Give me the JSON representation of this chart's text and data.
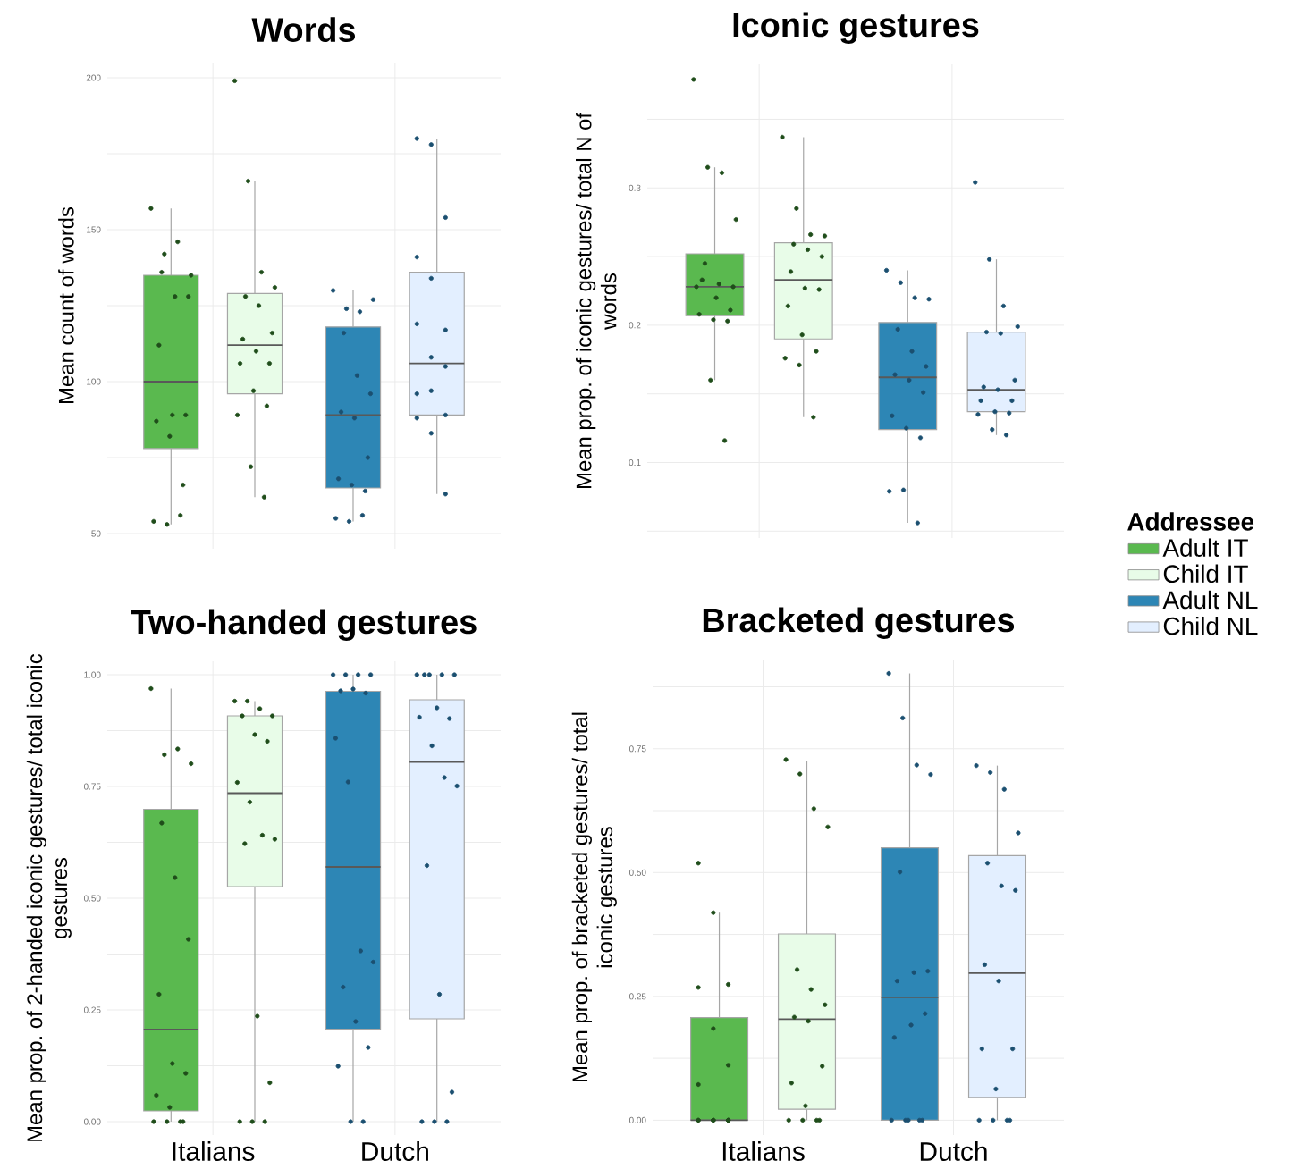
{
  "chart_data": [
    {
      "type": "box",
      "title": "Words",
      "ylabel": "Mean count of words",
      "categories": [
        "Italians",
        "Dutch"
      ],
      "ylim": [
        45,
        205
      ],
      "yticks": [
        50,
        {
          "value": 75,
          "label": null
        },
        100,
        {
          "value": 125,
          "label": null
        },
        150,
        {
          "value": 175,
          "label": null
        },
        200
      ],
      "grid": true,
      "tick_labels": "y",
      "series": [
        {
          "color": "#5ab94f",
          "boxes": [
            {
              "low": 53,
              "q1": 78,
              "median": 100,
              "q3": 135,
              "high": 157
            },
            null
          ]
        },
        {
          "color": "#e8fce8",
          "boxes": [
            {
              "low": 62,
              "q1": 96,
              "median": 112,
              "q3": 129,
              "high": 166
            },
            null
          ]
        },
        {
          "color": "#2d86b5",
          "boxes": [
            null,
            {
              "low": 54,
              "q1": 65,
              "median": 89,
              "q3": 118,
              "high": 130
            }
          ]
        },
        {
          "color": "#e3efff",
          "boxes": [
            null,
            {
              "low": 63,
              "q1": 89,
              "median": 106,
              "q3": 136,
              "high": 180
            }
          ]
        },
        {
          "type": "scatter",
          "marker": "circle",
          "color": "#1f4d1a",
          "x": [
            "Italians",
            "Italians",
            "Italians",
            "Italians",
            "Italians",
            "Italians",
            "Italians",
            "Italians",
            "Italians",
            "Italians",
            "Italians",
            "Italians",
            "Italians",
            "Italians",
            "Italians",
            "Italians"
          ],
          "values": [
            157,
            142,
            146,
            135,
            136,
            128,
            128,
            112,
            89,
            89,
            87,
            82,
            66,
            54,
            53,
            56
          ]
        },
        {
          "type": "scatter",
          "marker": "circle",
          "color": "#1f4d1a",
          "x": [
            "Italians",
            "Italians",
            "Italians",
            "Italians",
            "Italians",
            "Italians",
            "Italians",
            "Italians",
            "Italians",
            "Italians",
            "Italians",
            "Italians",
            "Italians",
            "Italians",
            "Italians",
            "Italians"
          ],
          "values": [
            199,
            166,
            136,
            131,
            128,
            125,
            116,
            114,
            110,
            106,
            106,
            97,
            92,
            89,
            72,
            62
          ]
        },
        {
          "type": "scatter",
          "marker": "circle",
          "color": "#1b4f70",
          "x": [
            "Dutch",
            "Dutch",
            "Dutch",
            "Dutch",
            "Dutch",
            "Dutch",
            "Dutch",
            "Dutch",
            "Dutch",
            "Dutch",
            "Dutch",
            "Dutch",
            "Dutch",
            "Dutch",
            "Dutch",
            "Dutch"
          ],
          "values": [
            130,
            124,
            123,
            127,
            116,
            102,
            96,
            90,
            88,
            75,
            68,
            66,
            64,
            55,
            54,
            56
          ]
        },
        {
          "type": "scatter",
          "marker": "circle",
          "color": "#1b4f70",
          "x": [
            "Dutch",
            "Dutch",
            "Dutch",
            "Dutch",
            "Dutch",
            "Dutch",
            "Dutch",
            "Dutch",
            "Dutch",
            "Dutch",
            "Dutch",
            "Dutch",
            "Dutch",
            "Dutch",
            "Dutch"
          ],
          "values": [
            180,
            178,
            154,
            141,
            134,
            117,
            119,
            108,
            105,
            96,
            97,
            89,
            88,
            83,
            63
          ]
        }
      ]
    },
    {
      "type": "box",
      "title": "Iconic gestures",
      "ylabel": "Mean prop. of iconic gestures/ total N of words",
      "categories": [
        "Italians",
        "Dutch"
      ],
      "ylim": [
        0.045,
        0.39
      ],
      "yticks": [
        {
          "value": 0.05,
          "label": null
        },
        0.1,
        {
          "value": 0.15,
          "label": null
        },
        0.2,
        {
          "value": 0.25,
          "label": null
        },
        0.3,
        {
          "value": 0.35,
          "label": null
        }
      ],
      "grid": true,
      "tick_labels": "y",
      "legend": "right",
      "legend_title": "Addressee",
      "series": [
        {
          "name": "Adult IT",
          "color": "#5ab94f",
          "boxes": [
            {
              "low": 0.16,
              "q1": 0.207,
              "median": 0.228,
              "q3": 0.252,
              "high": 0.315
            },
            null
          ]
        },
        {
          "name": "Child IT",
          "color": "#e8fce8",
          "boxes": [
            {
              "low": 0.133,
              "q1": 0.19,
              "median": 0.233,
              "q3": 0.26,
              "high": 0.337
            },
            null
          ]
        },
        {
          "name": "Adult NL",
          "color": "#2d86b5",
          "boxes": [
            null,
            {
              "low": 0.056,
              "q1": 0.124,
              "median": 0.162,
              "q3": 0.202,
              "high": 0.24
            }
          ]
        },
        {
          "name": "Child NL",
          "color": "#e3efff",
          "boxes": [
            null,
            {
              "low": 0.12,
              "q1": 0.137,
              "median": 0.153,
              "q3": 0.195,
              "high": 0.248
            }
          ]
        },
        {
          "type": "scatter",
          "marker": "circle",
          "color": "#1f4d1a",
          "x": [
            "Italians",
            "Italians",
            "Italians",
            "Italians",
            "Italians",
            "Italians",
            "Italians",
            "Italians",
            "Italians",
            "Italians",
            "Italians",
            "Italians",
            "Italians",
            "Italians",
            "Italians",
            "Italians"
          ],
          "values": [
            0.379,
            0.315,
            0.311,
            0.277,
            0.245,
            0.23,
            0.228,
            0.233,
            0.22,
            0.211,
            0.208,
            0.204,
            0.203,
            0.228,
            0.16,
            0.116
          ]
        },
        {
          "type": "scatter",
          "marker": "circle",
          "color": "#1f4d1a",
          "x": [
            "Italians",
            "Italians",
            "Italians",
            "Italians",
            "Italians",
            "Italians",
            "Italians",
            "Italians",
            "Italians",
            "Italians",
            "Italians",
            "Italians",
            "Italians",
            "Italians",
            "Italians",
            "Italians"
          ],
          "values": [
            0.337,
            0.285,
            0.266,
            0.265,
            0.259,
            0.255,
            0.25,
            0.239,
            0.227,
            0.226,
            0.214,
            0.193,
            0.181,
            0.176,
            0.171,
            0.133
          ]
        },
        {
          "type": "scatter",
          "marker": "circle",
          "color": "#1b4f70",
          "x": [
            "Dutch",
            "Dutch",
            "Dutch",
            "Dutch",
            "Dutch",
            "Dutch",
            "Dutch",
            "Dutch",
            "Dutch",
            "Dutch",
            "Dutch",
            "Dutch",
            "Dutch",
            "Dutch",
            "Dutch",
            "Dutch"
          ],
          "values": [
            0.24,
            0.231,
            0.22,
            0.219,
            0.197,
            0.181,
            0.17,
            0.164,
            0.16,
            0.151,
            0.134,
            0.125,
            0.118,
            0.079,
            0.08,
            0.056
          ]
        },
        {
          "type": "scatter",
          "marker": "circle",
          "color": "#1b4f70",
          "x": [
            "Dutch",
            "Dutch",
            "Dutch",
            "Dutch",
            "Dutch",
            "Dutch",
            "Dutch",
            "Dutch",
            "Dutch",
            "Dutch",
            "Dutch",
            "Dutch",
            "Dutch",
            "Dutch",
            "Dutch",
            "Dutch"
          ],
          "values": [
            0.304,
            0.248,
            0.214,
            0.199,
            0.195,
            0.194,
            0.16,
            0.155,
            0.153,
            0.145,
            0.145,
            0.137,
            0.136,
            0.135,
            0.124,
            0.12
          ]
        }
      ]
    },
    {
      "type": "box",
      "title": "Two-handed gestures",
      "ylabel": "Mean prop. of 2-handed iconic gestures/ total iconic gestures",
      "categories": [
        "Italians",
        "Dutch"
      ],
      "ylim": [
        -0.03,
        1.03
      ],
      "yticks": [
        {
          "value": 0,
          "label": "0.00"
        },
        {
          "value": 0.125,
          "label": null
        },
        {
          "value": 0.25,
          "label": "0.25"
        },
        {
          "value": 0.375,
          "label": null
        },
        {
          "value": 0.5,
          "label": "0.50"
        },
        {
          "value": 0.625,
          "label": null
        },
        {
          "value": 0.75,
          "label": "0.75"
        },
        {
          "value": 0.875,
          "label": null
        },
        {
          "value": 1,
          "label": "1.00"
        }
      ],
      "grid": true,
      "series": [
        {
          "color": "#5ab94f",
          "boxes": [
            {
              "low": 0,
              "q1": 0.024,
              "median": 0.206,
              "q3": 0.699,
              "high": 0.969
            },
            null
          ]
        },
        {
          "color": "#e8fce8",
          "boxes": [
            {
              "low": 0,
              "q1": 0.526,
              "median": 0.735,
              "q3": 0.908,
              "high": 0.941
            },
            null
          ]
        },
        {
          "color": "#2d86b5",
          "boxes": [
            null,
            {
              "low": 0,
              "q1": 0.207,
              "median": 0.57,
              "q3": 0.963,
              "high": 1
            }
          ]
        },
        {
          "color": "#e3efff",
          "boxes": [
            null,
            {
              "low": 0,
              "q1": 0.23,
              "median": 0.805,
              "q3": 0.944,
              "high": 1
            }
          ]
        },
        {
          "type": "scatter",
          "marker": "circle",
          "color": "#1f4d1a",
          "x": [
            "Italians",
            "Italians",
            "Italians",
            "Italians",
            "Italians",
            "Italians",
            "Italians",
            "Italians",
            "Italians",
            "Italians",
            "Italians",
            "Italians",
            "Italians",
            "Italians",
            "Italians",
            "Italians"
          ],
          "values": [
            0.969,
            0.821,
            0.834,
            0.801,
            0.668,
            0.546,
            0.408,
            0.285,
            0.13,
            0.108,
            0.059,
            0.032,
            0,
            0,
            0,
            0
          ]
        },
        {
          "type": "scatter",
          "marker": "circle",
          "color": "#1f4d1a",
          "x": [
            "Italians",
            "Italians",
            "Italians",
            "Italians",
            "Italians",
            "Italians",
            "Italians",
            "Italians",
            "Italians",
            "Italians",
            "Italians",
            "Italians",
            "Italians",
            "Italians",
            "Italians",
            "Italians",
            "Italians"
          ],
          "values": [
            0.941,
            0.941,
            0.924,
            0.908,
            0.908,
            0.866,
            0.851,
            0.759,
            0.715,
            0.641,
            0.632,
            0.622,
            0.236,
            0.087,
            0,
            0,
            0
          ]
        },
        {
          "type": "scatter",
          "marker": "circle",
          "color": "#1b4f70",
          "x": [
            "Dutch",
            "Dutch",
            "Dutch",
            "Dutch",
            "Dutch",
            "Dutch",
            "Dutch",
            "Dutch",
            "Dutch",
            "Dutch",
            "Dutch",
            "Dutch",
            "Dutch",
            "Dutch",
            "Dutch",
            "Dutch",
            "Dutch"
          ],
          "values": [
            1,
            1,
            1,
            1,
            0.964,
            0.968,
            0.959,
            0.858,
            0.76,
            0.382,
            0.357,
            0.301,
            0.224,
            0.166,
            0.124,
            0,
            0
          ]
        },
        {
          "type": "scatter",
          "marker": "circle",
          "color": "#1b4f70",
          "x": [
            "Dutch",
            "Dutch",
            "Dutch",
            "Dutch",
            "Dutch",
            "Dutch",
            "Dutch",
            "Dutch",
            "Dutch",
            "Dutch",
            "Dutch",
            "Dutch",
            "Dutch",
            "Dutch",
            "Dutch",
            "Dutch",
            "Dutch"
          ],
          "values": [
            1,
            1,
            1,
            1,
            1,
            0.926,
            0.902,
            0.905,
            0.841,
            0.77,
            0.751,
            0.573,
            0.285,
            0.066,
            0,
            0,
            0
          ]
        }
      ]
    },
    {
      "type": "box",
      "title": "Bracketed gestures",
      "ylabel": "Mean prop. of bracketed gestures/ total iconic gestures",
      "categories": [
        "Italians",
        "Dutch"
      ],
      "ylim": [
        -0.03,
        0.93
      ],
      "yticks": [
        {
          "value": 0,
          "label": "0.00"
        },
        {
          "value": 0.125,
          "label": null
        },
        {
          "value": 0.25,
          "label": "0.25"
        },
        {
          "value": 0.375,
          "label": null
        },
        {
          "value": 0.5,
          "label": "0.50"
        },
        {
          "value": 0.625,
          "label": null
        },
        {
          "value": 0.75,
          "label": "0.75"
        },
        {
          "value": 0.875,
          "label": null
        }
      ],
      "grid": true,
      "series": [
        {
          "color": "#5ab94f",
          "boxes": [
            {
              "low": 0,
              "q1": 0,
              "median": 0,
              "q3": 0.207,
              "high": 0.419
            },
            null
          ]
        },
        {
          "color": "#e8fce8",
          "boxes": [
            {
              "low": 0,
              "q1": 0.022,
              "median": 0.204,
              "q3": 0.376,
              "high": 0.726
            },
            null
          ]
        },
        {
          "color": "#2d86b5",
          "boxes": [
            null,
            {
              "low": 0,
              "q1": 0,
              "median": 0.248,
              "q3": 0.55,
              "high": 0.902
            }
          ]
        },
        {
          "color": "#e3efff",
          "boxes": [
            null,
            {
              "low": 0,
              "q1": 0.046,
              "median": 0.297,
              "q3": 0.534,
              "high": 0.716
            }
          ]
        },
        {
          "type": "scatter",
          "marker": "circle",
          "color": "#1f4d1a",
          "x": [
            "Italians",
            "Italians",
            "Italians",
            "Italians",
            "Italians",
            "Italians",
            "Italians",
            "Italians",
            "Italians",
            "Italians",
            "Italians",
            "Italians",
            "Italians",
            "Italians",
            "Italians"
          ],
          "values": [
            0.519,
            0.419,
            0.274,
            0.268,
            0.185,
            0.111,
            0.072,
            0,
            0,
            0,
            0,
            0,
            0,
            0,
            0
          ]
        },
        {
          "type": "scatter",
          "marker": "circle",
          "color": "#1f4d1a",
          "x": [
            "Italians",
            "Italians",
            "Italians",
            "Italians",
            "Italians",
            "Italians",
            "Italians",
            "Italians",
            "Italians",
            "Italians",
            "Italians",
            "Italians",
            "Italians",
            "Italians",
            "Italians",
            "Italians"
          ],
          "values": [
            0.728,
            0.699,
            0.629,
            0.592,
            0.304,
            0.264,
            0.233,
            0.208,
            0.2,
            0.109,
            0.075,
            0.029,
            0,
            0,
            0,
            0
          ]
        },
        {
          "type": "scatter",
          "marker": "circle",
          "color": "#1b4f70",
          "x": [
            "Dutch",
            "Dutch",
            "Dutch",
            "Dutch",
            "Dutch",
            "Dutch",
            "Dutch",
            "Dutch",
            "Dutch",
            "Dutch",
            "Dutch",
            "Dutch",
            "Dutch",
            "Dutch",
            "Dutch",
            "Dutch"
          ],
          "values": [
            0.902,
            0.812,
            0.717,
            0.698,
            0.501,
            0.298,
            0.301,
            0.281,
            0.192,
            0.215,
            0.167,
            0,
            0,
            0,
            0,
            0
          ]
        },
        {
          "type": "scatter",
          "marker": "circle",
          "color": "#1b4f70",
          "x": [
            "Dutch",
            "Dutch",
            "Dutch",
            "Dutch",
            "Dutch",
            "Dutch",
            "Dutch",
            "Dutch",
            "Dutch",
            "Dutch",
            "Dutch",
            "Dutch",
            "Dutch",
            "Dutch",
            "Dutch",
            "Dutch"
          ],
          "values": [
            0.716,
            0.702,
            0.668,
            0.58,
            0.519,
            0.473,
            0.464,
            0.314,
            0.281,
            0.144,
            0.144,
            0.063,
            0,
            0,
            0,
            0
          ]
        }
      ]
    }
  ]
}
